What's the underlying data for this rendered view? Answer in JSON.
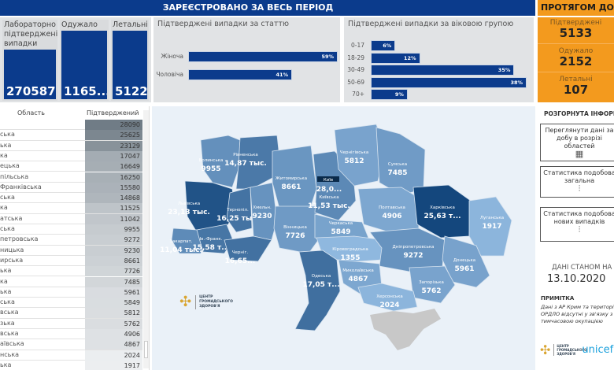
{
  "header": {
    "title": "ЗАРЕЄСТРОВАНО ЗА ВЕСЬ ПЕРІОД",
    "right_title": "ПРОТЯГОМ ДОБИ"
  },
  "totals": [
    {
      "label": "Лабораторно підтверджені випадки",
      "value": "270587"
    },
    {
      "label": "Одужало",
      "value": "1165..."
    },
    {
      "label": "Летальні",
      "value": "5122"
    }
  ],
  "gender_chart": {
    "title": "Підтверджені випадки за статтю",
    "type": "bar",
    "categories": [
      "Жіноча",
      "Чоловіча"
    ],
    "values": [
      59,
      41
    ],
    "labels": [
      "59%",
      "41%"
    ]
  },
  "age_chart": {
    "title": "Підтверджені випадки за віковою групою",
    "type": "bar",
    "categories": [
      "0-17",
      "18-29",
      "30-49",
      "50-69",
      "70+"
    ],
    "values": [
      6,
      12,
      35,
      38,
      9
    ],
    "labels": [
      "6%",
      "12%",
      "35%",
      "38%",
      "9%"
    ]
  },
  "daily": [
    {
      "label": "Підтверджені",
      "value": "5133"
    },
    {
      "label": "Одужало",
      "value": "2152"
    },
    {
      "label": "Летальні",
      "value": "107"
    }
  ],
  "table": {
    "headers": [
      "Область",
      "Підтверджений"
    ],
    "rows": [
      {
        "name": "",
        "value": 28090
      },
      {
        "name": "ська",
        "value": 25625
      },
      {
        "name": "ька",
        "value": 23129
      },
      {
        "name": "ка",
        "value": 17047
      },
      {
        "name": "ецька",
        "value": 16649
      },
      {
        "name": "пільська",
        "value": 16250
      },
      {
        "name": "Франківська",
        "value": 15580
      },
      {
        "name": "ська",
        "value": 14868
      },
      {
        "name": "ка",
        "value": 11525
      },
      {
        "name": "атська",
        "value": 11042
      },
      {
        "name": "ська",
        "value": 9955
      },
      {
        "name": "петровська",
        "value": 9272
      },
      {
        "name": "ницька",
        "value": 9230
      },
      {
        "name": "ирська",
        "value": 8661
      },
      {
        "name": "ька",
        "value": 7726
      },
      {
        "name": "ка",
        "value": 7485
      },
      {
        "name": "ька",
        "value": 5961
      },
      {
        "name": "ська",
        "value": 5849
      },
      {
        "name": "вська",
        "value": 5812
      },
      {
        "name": "зька",
        "value": 5762
      },
      {
        "name": "вська",
        "value": 4906
      },
      {
        "name": "аївська",
        "value": 4867
      },
      {
        "name": "нська",
        "value": 2024
      },
      {
        "name": "ька",
        "value": 1917
      }
    ]
  },
  "map": {
    "regions": [
      {
        "name": "Волинська",
        "label": "9955",
        "value": 9955
      },
      {
        "name": "Рівненська",
        "label": "14,87 тыс.",
        "value": 14868
      },
      {
        "name": "Львівська",
        "label": "23,13 тыс.",
        "value": 23129
      },
      {
        "name": "Тернопіл.",
        "label": "16,25 тыс.",
        "value": 16250
      },
      {
        "name": "Хмельн.",
        "label": "9230",
        "value": 9230
      },
      {
        "name": "Житомирська",
        "label": "8661",
        "value": 8661
      },
      {
        "name": "Закарпат.",
        "label": "11,04 тыс.",
        "value": 11042
      },
      {
        "name": "Ів.-Франк.",
        "label": "15,58 т...",
        "value": 15580
      },
      {
        "name": "Черніг.",
        "label": "16,65...",
        "value": 16649
      },
      {
        "name": "Вінницька",
        "label": "7726",
        "value": 7726
      },
      {
        "name": "Київська",
        "label": "11,53 тыс.",
        "value": 11525
      },
      {
        "name": "Чернігівська",
        "label": "5812",
        "value": 5812
      },
      {
        "name": "Сумська",
        "label": "7485",
        "value": 7485
      },
      {
        "name": "Полтавська",
        "label": "4906",
        "value": 4906
      },
      {
        "name": "Харківська",
        "label": "25,63 т...",
        "value": 25625
      },
      {
        "name": "Луганська",
        "label": "1917",
        "value": 1917
      },
      {
        "name": "Черкаська",
        "label": "5849",
        "value": 5849
      },
      {
        "name": "Кіровоградська",
        "label": "1355",
        "value": 1355
      },
      {
        "name": "Дніпропетровська",
        "label": "9272",
        "value": 9272
      },
      {
        "name": "Донецька",
        "label": "5961",
        "value": 5961
      },
      {
        "name": "Запорізька",
        "label": "5762",
        "value": 5762
      },
      {
        "name": "Миколаївська",
        "label": "4867",
        "value": 4867
      },
      {
        "name": "Херсонська",
        "label": "2024",
        "value": 2024
      },
      {
        "name": "Одеська",
        "label": "17,05 т...",
        "value": 17047
      }
    ],
    "kyiv": {
      "name": "Київ",
      "label": "28,0..."
    },
    "crimea_color": "#c8c8c8"
  },
  "right": {
    "section_title": "РОЗГОРНУТА ІНФОРМАЦІЯ",
    "links": [
      "Переглянути дані за добу в розрізі областей",
      "Статистика подобова загальна",
      "Статистика подобова нових випадків"
    ],
    "date_label": "ДАНІ СТАНОМ НА",
    "date": "13.10.2020",
    "note_title": "ПРИМІТКА",
    "note": "Дані з АР Крим та територій ОРДЛО відсутні у зв'язку з тимчасовою окупацією"
  },
  "logo": {
    "text": "ЦЕНТР ГРОМАДСЬКОГО ЗДОРОВ'Я",
    "partner": "unicef"
  },
  "colors": {
    "brand": "#0b3b8c",
    "accent": "#f39a1e"
  }
}
